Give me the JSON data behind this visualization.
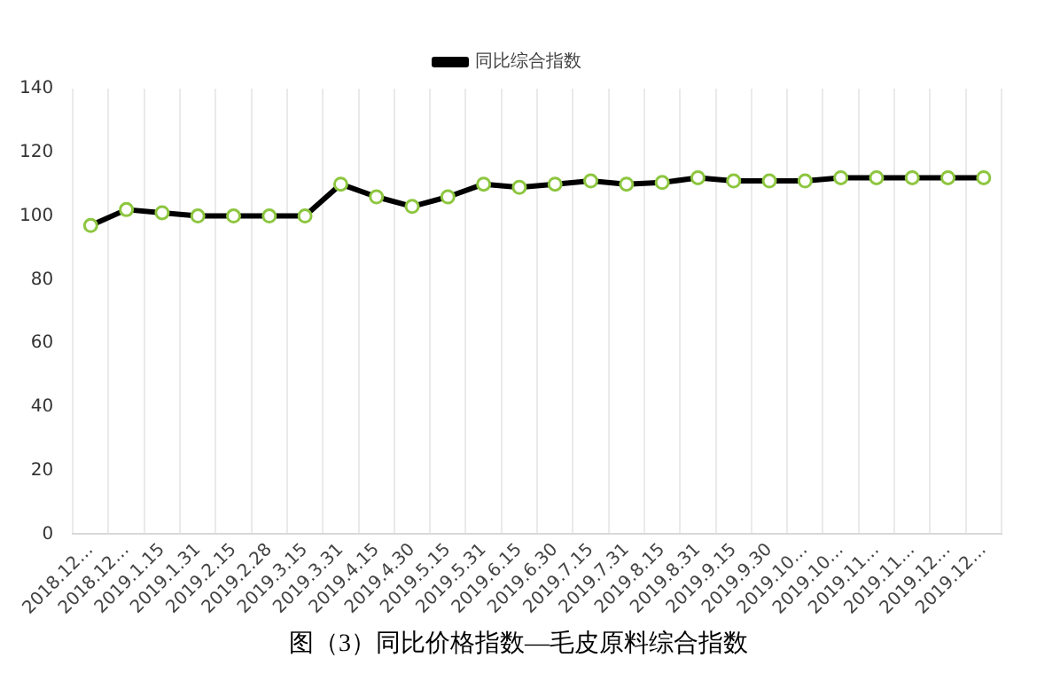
{
  "chart_data": {
    "type": "line",
    "categories": [
      "2018.12…",
      "2018.12…",
      "2019.1.15",
      "2019.1.31",
      "2019.2.15",
      "2019.2.28",
      "2019.3.15",
      "2019.3.31",
      "2019.4.15",
      "2019.4.30",
      "2019.5.15",
      "2019.5.31",
      "2019.6.15",
      "2019.6.30",
      "2019.7.15",
      "2019.7.31",
      "2019.8.15",
      "2019.8.31",
      "2019.9.15",
      "2019.9.30",
      "2019.10…",
      "2019.10…",
      "2019.11…",
      "2019.11…",
      "2019.12…",
      "2019.12…"
    ],
    "series": [
      {
        "name": "同比综合指数",
        "color": "#000000",
        "values": [
          97,
          102,
          101,
          100,
          100,
          100,
          100,
          110,
          106,
          103,
          106,
          110,
          109,
          110,
          111,
          110,
          110.5,
          112,
          111,
          111,
          111,
          112,
          112,
          112,
          112,
          112
        ]
      }
    ],
    "ylim": [
      0,
      140
    ],
    "yticks": [
      0,
      20,
      40,
      60,
      80,
      100,
      120,
      140
    ],
    "grid": "x",
    "legend": "top",
    "marker": "circle",
    "line_style": "solid",
    "annotations": [
      "图（3）同比价格指数—毛皮原料综合指数"
    ]
  }
}
